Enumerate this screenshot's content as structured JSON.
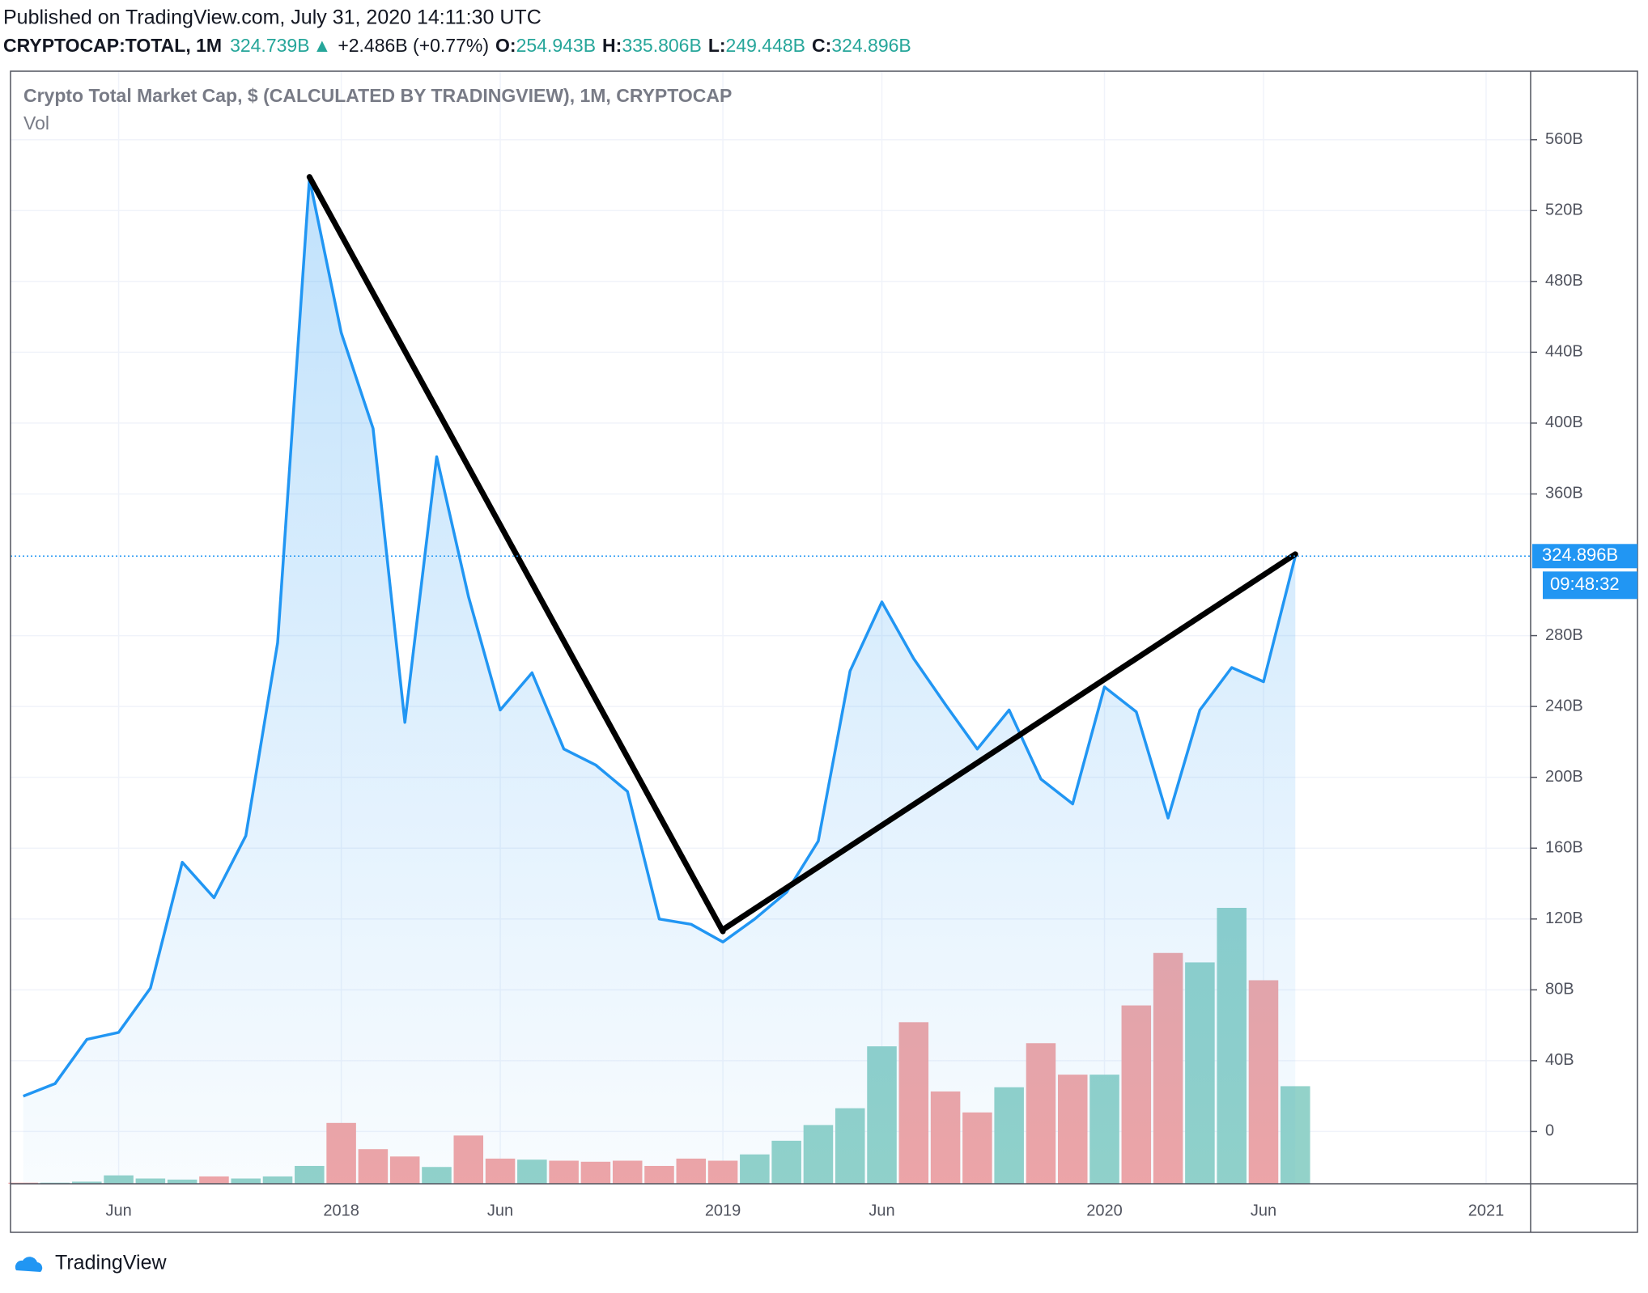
{
  "header": {
    "published": "Published on TradingView.com, July 31, 2020 14:11:30 UTC",
    "symbol": "CRYPTOCAP:TOTAL, 1M",
    "price": "324.739B",
    "arrow": "▲",
    "change": "+2.486B (+0.77%)",
    "o_label": "O:",
    "o": "254.943B",
    "h_label": "H:",
    "h": "335.806B",
    "l_label": "L:",
    "l": "249.448B",
    "c_label": "C:",
    "c": "324.896B"
  },
  "chart_data": {
    "type": "line",
    "x": [
      "2017-03",
      "2017-04",
      "2017-05",
      "2017-06",
      "2017-07",
      "2017-08",
      "2017-09",
      "2017-10",
      "2017-11",
      "2017-12",
      "2018-01",
      "2018-02",
      "2018-03",
      "2018-04",
      "2018-05",
      "2018-06",
      "2018-07",
      "2018-08",
      "2018-09",
      "2018-10",
      "2018-11",
      "2018-12",
      "2019-01",
      "2019-02",
      "2019-03",
      "2019-04",
      "2019-05",
      "2019-06",
      "2019-07",
      "2019-08",
      "2019-09",
      "2019-10",
      "2019-11",
      "2019-12",
      "2020-01",
      "2020-02",
      "2020-03",
      "2020-04",
      "2020-05",
      "2020-06",
      "2020-07"
    ],
    "series": [
      {
        "name": "Crypto Total Market Cap, $ (CALCULATED BY TRADINGVIEW), 1M, CRYPTOCAP",
        "color": "#2196f3",
        "values": [
          20,
          27,
          52,
          56,
          81,
          152,
          132,
          167,
          276,
          538,
          451,
          397,
          231,
          381,
          302,
          238,
          259,
          216,
          207,
          192,
          120,
          117,
          107,
          120,
          135,
          164,
          260,
          299,
          267,
          241,
          216,
          238,
          199,
          185,
          251,
          237,
          177,
          238,
          262,
          254,
          324.896
        ]
      },
      {
        "name": "Vol",
        "type": "bar",
        "colors": [
          "#f2a5a5",
          "#93d2c9",
          "#93d2c9",
          "#93d2c9",
          "#93d2c9",
          "#93d2c9",
          "#f2a5a5",
          "#93d2c9",
          "#93d2c9",
          "#93d2c9",
          "#f2a5a5",
          "#f2a5a5",
          "#f2a5a5",
          "#93d2c9",
          "#f2a5a5",
          "#f2a5a5",
          "#93d2c9",
          "#f2a5a5",
          "#f2a5a5",
          "#f2a5a5",
          "#f2a5a5",
          "#f2a5a5",
          "#f2a5a5",
          "#93d2c9",
          "#93d2c9",
          "#93d2c9",
          "#93d2c9",
          "#93d2c9",
          "#f2a5a5",
          "#f2a5a5",
          "#f2a5a5",
          "#93d2c9",
          "#f2a5a5",
          "#f2a5a5",
          "#93d2c9",
          "#f2a5a5",
          "#f2a5a5",
          "#93d2c9",
          "#93d2c9",
          "#f2a5a5",
          "#93d2c9"
        ],
        "values": [
          1,
          1,
          2,
          8,
          5,
          4,
          7,
          5,
          7,
          17,
          58,
          33,
          26,
          16,
          46,
          24,
          23,
          22,
          21,
          22,
          17,
          24,
          22,
          28,
          41,
          56,
          72,
          131,
          154,
          88,
          68,
          92,
          134,
          104,
          104,
          170,
          220,
          211,
          263,
          194,
          93
        ]
      }
    ],
    "trendlines": [
      {
        "x": [
          "2017-12",
          "2019-01"
        ],
        "values": [
          539,
          113
        ],
        "color": "#000000"
      },
      {
        "x": [
          "2019-01",
          "2020-07"
        ],
        "values": [
          114,
          326
        ],
        "color": "#000000"
      }
    ],
    "xlim": [
      "2017-03",
      "2021-02"
    ],
    "xticks": [
      {
        "value": "2017-06",
        "label": "Jun"
      },
      {
        "value": "2018-01",
        "label": "2018"
      },
      {
        "value": "2018-06",
        "label": "Jun"
      },
      {
        "value": "2019-01",
        "label": "2019"
      },
      {
        "value": "2019-06",
        "label": "Jun"
      },
      {
        "value": "2020-01",
        "label": "2020"
      },
      {
        "value": "2020-06",
        "label": "Jun"
      },
      {
        "value": "2021-01",
        "label": "2021"
      }
    ],
    "ylim": [
      -29.5,
      598.7
    ],
    "yticks": [
      0,
      {
        "value": 40,
        "label": "40B"
      },
      {
        "value": 80,
        "label": "80B"
      },
      {
        "value": 120,
        "label": "120B"
      },
      {
        "value": 160,
        "label": "160B"
      },
      {
        "value": 200,
        "label": "200B"
      },
      {
        "value": 240,
        "label": "240B"
      },
      {
        "value": 280,
        "label": "280B"
      },
      {
        "value": 360,
        "label": "360B"
      },
      {
        "value": 400,
        "label": "400B"
      },
      {
        "value": 440,
        "label": "440B"
      },
      {
        "value": 480,
        "label": "480B"
      },
      {
        "value": 520,
        "label": "520B"
      },
      {
        "value": 560,
        "label": "560B"
      }
    ],
    "last_price": {
      "value": 324.896,
      "label": "324.896B"
    },
    "countdown": "09:48:32",
    "grid": true
  },
  "footer": {
    "brand": "TradingView"
  }
}
